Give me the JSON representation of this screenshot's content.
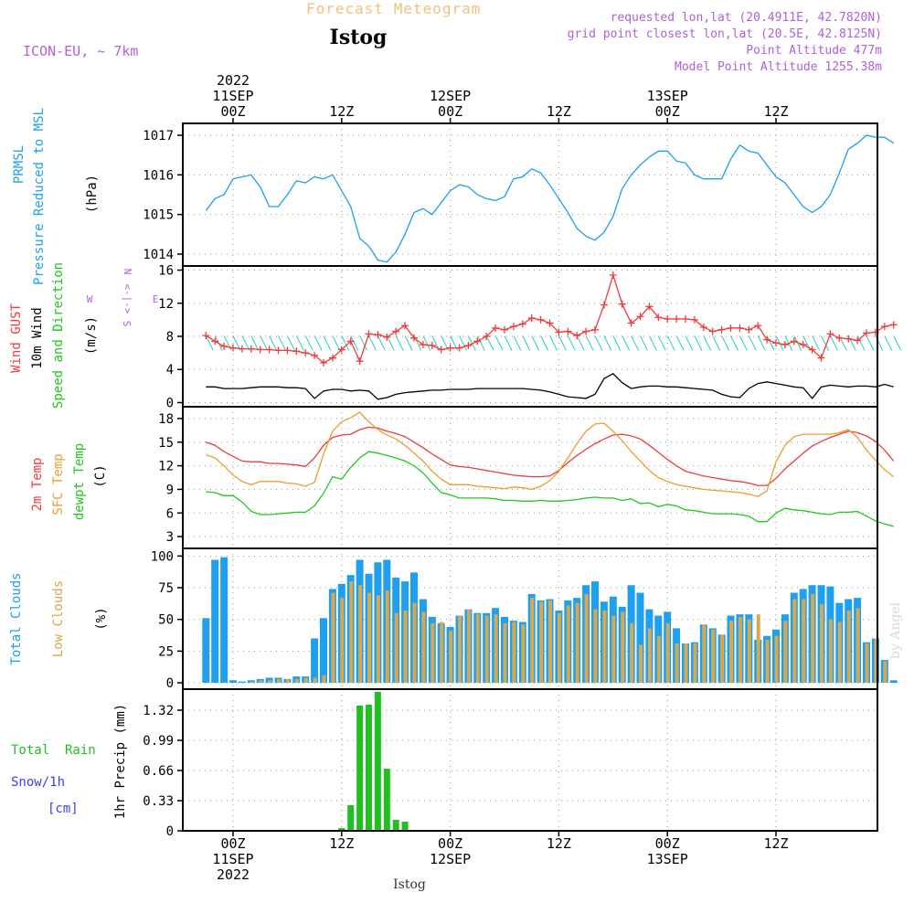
{
  "header": {
    "top_title": "Forecast Meteogram",
    "station": "Istog",
    "model": "ICON-EU, ~ 7km",
    "requested": "requested lon,lat (20.4911E, 42.7820N)",
    "grid_point": "grid point closest lon,lat (20.5E, 42.8125N)",
    "point_altitude": "Point Altitude 477m",
    "model_altitude": "Model Point Altitude 1255.38m",
    "watermark": "by Angel",
    "bottom_station": "Istog"
  },
  "colors": {
    "pressure": "#1ea0ee",
    "gust": "#f03c3c",
    "wind": "#000000",
    "wind_barb": "#20d0c0",
    "temp2m": "#f03c3c",
    "sfc_temp": "#e8a030",
    "dewpt": "#20c820",
    "total_clouds": "#1ea0ee",
    "low_clouds": "#d8a850",
    "rain": "#20c020",
    "snow": "#4040e0",
    "purple_text": "#b060e0",
    "orange_text": "#f0c080"
  },
  "time_axis": {
    "top": [
      {
        "h": 0,
        "lines": [
          "2022",
          "11SEP",
          "00Z"
        ]
      },
      {
        "h": 12,
        "lines": [
          "12Z"
        ]
      },
      {
        "h": 24,
        "lines": [
          "12SEP",
          "00Z"
        ]
      },
      {
        "h": 36,
        "lines": [
          "12Z"
        ]
      },
      {
        "h": 48,
        "lines": [
          "13SEP",
          "00Z"
        ]
      },
      {
        "h": 60,
        "lines": [
          "12Z"
        ]
      }
    ],
    "bottom": [
      {
        "h": 0,
        "lines": [
          "00Z",
          "11SEP",
          "2022"
        ]
      },
      {
        "h": 12,
        "lines": [
          "12Z"
        ]
      },
      {
        "h": 24,
        "lines": [
          "00Z",
          "12SEP"
        ]
      },
      {
        "h": 36,
        "lines": [
          "12Z"
        ]
      },
      {
        "h": 48,
        "lines": [
          "00Z",
          "13SEP"
        ]
      },
      {
        "h": 60,
        "lines": [
          "12Z"
        ]
      }
    ]
  },
  "panel_labels": {
    "pressure": [
      "PRMSL",
      "Pressure Reduced to MSL"
    ],
    "pressure_unit": "(hPa)",
    "wind": [
      "Wind GUST",
      "10m Wind",
      "Speed and Direction"
    ],
    "wind_unit": "(m/s)",
    "compass": {
      "n": "N",
      "s": "S",
      "w": "W",
      "e": "E",
      "arrows": "<-|->"
    },
    "temp": [
      "2m Temp",
      "SFC Temp",
      "dewpt Temp"
    ],
    "temp_unit": "(C)",
    "clouds": [
      "Total Clouds",
      "Low Clouds"
    ],
    "clouds_unit": "(%)",
    "precip": [
      "Total  Rain",
      "Snow/1h",
      "[cm]"
    ],
    "precip_unit": "1hr Precip (mm)"
  },
  "chart_data": [
    {
      "type": "line",
      "name": "pressure",
      "x_start_hour": -3,
      "x_step_hours": 1,
      "ylim": [
        1013.7,
        1017.3
      ],
      "ticks": [
        "1014",
        "1015",
        "1016",
        "1017"
      ],
      "series": [
        {
          "name": "PRMSL",
          "values": [
            1015.1,
            1015.4,
            1015.5,
            1015.9,
            1015.95,
            1016.0,
            1015.7,
            1015.2,
            1015.2,
            1015.5,
            1015.85,
            1015.8,
            1015.95,
            1015.9,
            1016.0,
            1015.6,
            1015.2,
            1014.4,
            1014.2,
            1013.85,
            1013.8,
            1014.05,
            1014.5,
            1015.05,
            1015.15,
            1015.0,
            1015.3,
            1015.6,
            1015.75,
            1015.7,
            1015.5,
            1015.4,
            1015.35,
            1015.45,
            1015.9,
            1015.95,
            1016.15,
            1016.05,
            1015.75,
            1015.4,
            1015.05,
            1014.65,
            1014.45,
            1014.35,
            1014.55,
            1014.95,
            1015.65,
            1016.0,
            1016.25,
            1016.45,
            1016.6,
            1016.6,
            1016.35,
            1016.3,
            1016.0,
            1015.9,
            1015.9,
            1015.9,
            1016.4,
            1016.75,
            1016.6,
            1016.55,
            1016.25,
            1015.95,
            1015.8,
            1015.5,
            1015.2,
            1015.05,
            1015.2,
            1015.5,
            1016.05,
            1016.65,
            1016.8,
            1017.0,
            1016.95,
            1016.95,
            1016.8
          ]
        }
      ]
    },
    {
      "type": "line",
      "name": "wind",
      "x_start_hour": -3,
      "x_step_hours": 1,
      "ylim": [
        -0.5,
        16.5
      ],
      "ticks": [
        "0",
        "4",
        "8",
        "12",
        "16"
      ],
      "series": [
        {
          "name": "Wind GUST",
          "values": [
            8.1,
            7.4,
            6.8,
            6.6,
            6.5,
            6.5,
            6.4,
            6.4,
            6.3,
            6.3,
            6.2,
            6.0,
            5.7,
            4.8,
            5.4,
            6.4,
            7.4,
            5.0,
            8.3,
            8.2,
            7.9,
            8.6,
            9.3,
            7.8,
            7.0,
            6.9,
            6.4,
            6.6,
            6.6,
            6.9,
            7.4,
            8.0,
            9.0,
            8.8,
            9.2,
            9.5,
            10.2,
            10.0,
            9.6,
            8.5,
            8.6,
            8.1,
            8.6,
            8.8,
            11.8,
            15.4,
            11.9,
            9.6,
            10.4,
            11.6,
            10.3,
            10.1,
            10.1,
            10.1,
            10.0,
            9.1,
            8.6,
            8.8,
            9.0,
            9.0,
            8.8,
            9.3,
            7.6,
            7.2,
            7.0,
            7.4,
            7.0,
            6.4,
            5.4,
            8.3,
            7.8,
            7.7,
            7.5,
            8.4,
            8.5,
            9.2,
            9.4
          ]
        },
        {
          "name": "10m Wind",
          "values": [
            1.9,
            1.9,
            1.7,
            1.7,
            1.7,
            1.8,
            1.9,
            1.9,
            1.9,
            1.8,
            1.8,
            1.7,
            0.5,
            1.4,
            1.6,
            1.6,
            1.4,
            1.5,
            1.4,
            0.4,
            0.6,
            1.0,
            1.2,
            1.3,
            1.4,
            1.5,
            1.5,
            1.6,
            1.6,
            1.6,
            1.7,
            1.7,
            1.7,
            1.7,
            1.7,
            1.7,
            1.6,
            1.5,
            1.3,
            1.0,
            0.7,
            0.6,
            0.5,
            1.0,
            2.9,
            3.5,
            2.4,
            1.7,
            1.9,
            2.0,
            2.0,
            1.9,
            1.9,
            1.8,
            1.7,
            1.6,
            1.5,
            1.0,
            0.7,
            0.6,
            1.7,
            2.3,
            2.5,
            2.3,
            2.1,
            1.9,
            1.8,
            0.5,
            1.9,
            2.1,
            2.0,
            1.9,
            2.0,
            2.0,
            1.9,
            2.2,
            1.9
          ]
        }
      ]
    },
    {
      "type": "line",
      "name": "temperature",
      "x_start_hour": -3,
      "x_step_hours": 1,
      "ylim": [
        1.5,
        19.5
      ],
      "ticks": [
        "3",
        "6",
        "9",
        "12",
        "15",
        "18"
      ],
      "series": [
        {
          "name": "2m Temp",
          "values": [
            15.0,
            14.6,
            13.8,
            13.2,
            12.6,
            12.5,
            12.5,
            12.3,
            12.3,
            12.2,
            12.1,
            11.9,
            13.0,
            14.6,
            15.6,
            15.9,
            16.0,
            16.6,
            16.9,
            16.8,
            16.4,
            16.1,
            15.7,
            15.0,
            14.3,
            13.5,
            12.8,
            12.1,
            11.9,
            11.8,
            11.6,
            11.4,
            11.2,
            11.0,
            10.8,
            10.7,
            10.6,
            10.6,
            10.7,
            11.4,
            12.4,
            13.3,
            14.1,
            14.8,
            15.4,
            15.9,
            16.0,
            15.8,
            15.4,
            14.6,
            13.7,
            12.8,
            12.0,
            11.3,
            11.0,
            10.7,
            10.5,
            10.3,
            10.1,
            10.0,
            9.8,
            9.5,
            9.5,
            10.4,
            11.6,
            12.6,
            13.6,
            14.5,
            15.1,
            15.6,
            16.0,
            16.4,
            16.2,
            15.8,
            15.1,
            14.0,
            12.6
          ]
        },
        {
          "name": "SFC Temp",
          "values": [
            13.4,
            13.0,
            12.0,
            10.8,
            10.0,
            9.6,
            10.0,
            10.0,
            10.0,
            9.8,
            9.7,
            9.4,
            9.9,
            13.5,
            16.4,
            17.6,
            18.1,
            18.8,
            17.6,
            16.6,
            15.9,
            15.4,
            14.6,
            13.6,
            12.6,
            11.3,
            10.3,
            9.6,
            9.6,
            9.6,
            9.4,
            9.3,
            9.2,
            9.1,
            9.3,
            9.2,
            9.0,
            9.4,
            10.1,
            11.3,
            13.0,
            14.8,
            16.4,
            17.3,
            17.4,
            16.4,
            15.2,
            13.8,
            12.6,
            11.4,
            10.5,
            10.0,
            9.6,
            9.4,
            9.2,
            9.0,
            8.9,
            8.8,
            8.7,
            8.6,
            8.4,
            8.1,
            8.8,
            12.5,
            14.6,
            15.7,
            16.0,
            16.0,
            16.0,
            16.0,
            16.2,
            16.6,
            15.6,
            14.0,
            12.7,
            11.5,
            10.6
          ]
        },
        {
          "name": "dewpt Temp",
          "values": [
            8.7,
            8.6,
            8.2,
            8.2,
            7.4,
            6.2,
            5.8,
            5.8,
            5.9,
            6.0,
            6.1,
            6.1,
            6.9,
            8.5,
            10.6,
            10.3,
            11.8,
            13.0,
            13.8,
            13.6,
            13.3,
            13.0,
            12.6,
            12.0,
            11.1,
            9.8,
            8.6,
            8.3,
            7.9,
            7.9,
            7.9,
            7.9,
            7.8,
            7.6,
            7.6,
            7.5,
            7.5,
            7.6,
            7.5,
            7.5,
            7.6,
            7.7,
            7.9,
            8.0,
            7.9,
            7.9,
            7.6,
            7.8,
            7.2,
            7.3,
            6.8,
            7.1,
            6.9,
            6.4,
            6.3,
            6.1,
            5.9,
            5.9,
            5.9,
            5.8,
            5.6,
            4.9,
            4.9,
            6.0,
            6.6,
            6.4,
            6.3,
            6.1,
            5.9,
            5.8,
            6.1,
            6.1,
            6.2,
            5.6,
            5.0,
            4.6,
            4.3
          ]
        }
      ]
    },
    {
      "type": "bar",
      "name": "clouds",
      "x_start_hour": -3,
      "x_step_hours": 1,
      "ylim": [
        -5,
        106
      ],
      "ticks": [
        "0",
        "25",
        "50",
        "75",
        "100"
      ],
      "series": [
        {
          "name": "Total Clouds",
          "values": [
            51,
            97,
            99,
            2,
            1,
            2,
            3,
            4,
            4,
            3,
            5,
            5,
            35,
            51,
            74,
            78,
            85,
            97,
            86,
            95,
            97,
            83,
            80,
            87,
            66,
            52,
            47,
            44,
            53,
            58,
            55,
            55,
            59,
            52,
            49,
            48,
            70,
            65,
            66,
            57,
            65,
            67,
            77,
            80,
            64,
            68,
            60,
            77,
            71,
            58,
            53,
            56,
            43,
            31,
            32,
            46,
            43,
            38,
            53,
            54,
            54,
            34,
            37,
            42,
            54,
            71,
            74,
            77,
            77,
            76,
            63,
            66,
            67,
            32,
            35,
            18,
            2
          ]
        },
        {
          "name": "Low Clouds",
          "values": [
            0,
            0,
            0,
            0,
            0,
            1,
            2,
            2,
            3,
            3,
            3,
            4,
            4,
            6,
            71,
            67,
            80,
            77,
            71,
            69,
            73,
            55,
            57,
            63,
            56,
            47,
            48,
            41,
            53,
            58,
            54,
            53,
            54,
            47,
            48,
            46,
            67,
            64,
            65,
            55,
            61,
            63,
            70,
            58,
            57,
            53,
            56,
            47,
            30,
            43,
            37,
            47,
            31,
            31,
            31,
            46,
            42,
            38,
            49,
            52,
            50,
            54,
            34,
            37,
            49,
            66,
            66,
            70,
            62,
            50,
            48,
            57,
            59,
            31,
            35,
            17,
            0
          ]
        }
      ]
    },
    {
      "type": "bar",
      "name": "precipitation",
      "x_start_hour": -3,
      "x_step_hours": 1,
      "ylim": [
        0,
        1.55
      ],
      "ticks": [
        "0",
        "0.33",
        "0.66",
        "0.99",
        "1.32"
      ],
      "series": [
        {
          "name": "Total Rain",
          "values": [
            0,
            0,
            0,
            0,
            0,
            0,
            0,
            0,
            0,
            0,
            0,
            0,
            0,
            0,
            0,
            0.03,
            0.28,
            1.37,
            1.38,
            1.52,
            0.68,
            0.12,
            0.1,
            0,
            0,
            0,
            0,
            0,
            0,
            0,
            0,
            0,
            0,
            0,
            0,
            0,
            0,
            0,
            0,
            0,
            0,
            0,
            0,
            0,
            0,
            0,
            0,
            0,
            0,
            0,
            0,
            0,
            0,
            0,
            0,
            0,
            0,
            0,
            0,
            0,
            0,
            0,
            0,
            0,
            0,
            0,
            0,
            0,
            0,
            0,
            0,
            0,
            0,
            0,
            0,
            0,
            0
          ]
        }
      ]
    }
  ]
}
